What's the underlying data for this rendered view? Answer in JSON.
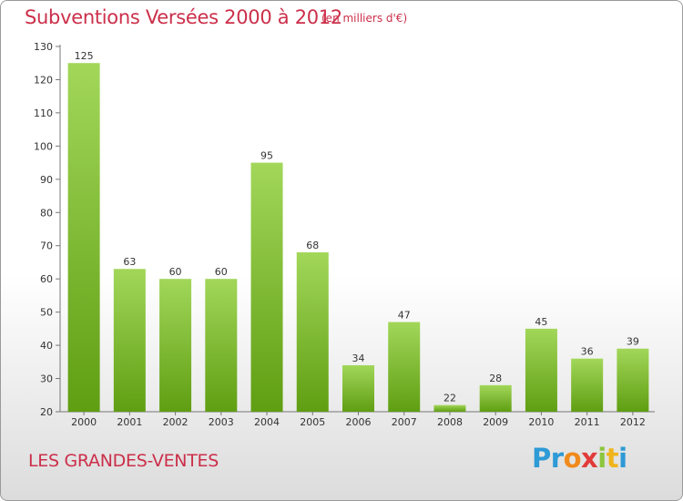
{
  "header": {
    "title": "Subventions Versées 2000 à 2012",
    "unit": "(en milliers d'€)"
  },
  "footer": {
    "commune": "LES GRANDES-VENTES",
    "logo_letters": [
      "P",
      "r",
      "o",
      "x",
      "i",
      "t",
      "i"
    ],
    "logo_colors": [
      "#2e9ad6",
      "#2e9ad6",
      "#f08a1c",
      "#e23b3b",
      "#8cc63f",
      "#f0b51c",
      "#2e9ad6"
    ]
  },
  "colors": {
    "accent": "#cc2f4a",
    "bar_light": "#a2d75a",
    "bar_dark": "#5f9e12"
  },
  "chart_data": {
    "type": "bar",
    "title": "Subventions Versées 2000 à 2012",
    "xlabel": "",
    "ylabel": "",
    "categories": [
      "2000",
      "2001",
      "2002",
      "2003",
      "2004",
      "2005",
      "2006",
      "2007",
      "2008",
      "2009",
      "2010",
      "2011",
      "2012"
    ],
    "values": [
      125,
      63,
      60,
      60,
      95,
      68,
      34,
      47,
      22,
      28,
      45,
      36,
      39
    ],
    "ylim": [
      20,
      130
    ],
    "yticks": [
      20,
      30,
      40,
      50,
      60,
      70,
      80,
      90,
      100,
      110,
      120,
      130
    ],
    "grid": false,
    "legend": "none"
  }
}
